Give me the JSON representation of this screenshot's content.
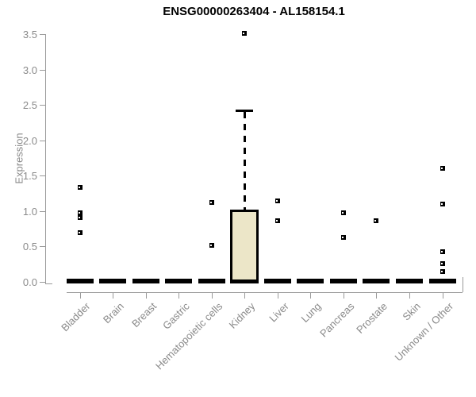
{
  "title": "ENSG00000263404 - AL158154.1",
  "colors": {
    "box_fill": "#ece6c8",
    "box_border": "#000000",
    "axis_line": "#9a9a9a",
    "tick_label_color": "#8a8a8a",
    "title_color": "#000000"
  },
  "chart_data": {
    "type": "boxplot",
    "title": "ENSG00000263404 - AL158154.1",
    "xlabel": "",
    "ylabel": "Expression",
    "ylim": [
      0,
      3.5
    ],
    "ytick_step": 0.5,
    "ytick_labels": [
      "0.0",
      "0.5",
      "1.0",
      "1.5",
      "2.0",
      "2.5",
      "3.0",
      "3.5"
    ],
    "grid": false,
    "legend": "none",
    "categories": [
      "Bladder",
      "Brain",
      "Breast",
      "Gastric",
      "Hematopoietic cells",
      "Kidney",
      "Liver",
      "Lung",
      "Pancreas",
      "Prostate",
      "Skin",
      "Unknown / Other"
    ],
    "series": [
      {
        "category": "Bladder",
        "q1": 0,
        "median": 0,
        "q3": 0,
        "whisker_low": 0,
        "whisker_high": 0,
        "outliers": [
          1.34,
          0.98,
          0.91,
          0.7
        ]
      },
      {
        "category": "Brain",
        "q1": 0,
        "median": 0,
        "q3": 0,
        "whisker_low": 0,
        "whisker_high": 0,
        "outliers": []
      },
      {
        "category": "Breast",
        "q1": 0,
        "median": 0,
        "q3": 0,
        "whisker_low": 0,
        "whisker_high": 0,
        "outliers": []
      },
      {
        "category": "Gastric",
        "q1": 0,
        "median": 0,
        "q3": 0,
        "whisker_low": 0,
        "whisker_high": 0,
        "outliers": []
      },
      {
        "category": "Hematopoietic cells",
        "q1": 0,
        "median": 0,
        "q3": 0,
        "whisker_low": 0,
        "whisker_high": 0,
        "outliers": [
          1.12,
          0.52
        ]
      },
      {
        "category": "Kidney",
        "q1": 0.02,
        "median": 0.02,
        "q3": 1.02,
        "whisker_low": 0.02,
        "whisker_high": 2.43,
        "outliers": [
          3.51
        ]
      },
      {
        "category": "Liver",
        "q1": 0,
        "median": 0,
        "q3": 0,
        "whisker_low": 0,
        "whisker_high": 0,
        "outliers": [
          1.15,
          0.87
        ]
      },
      {
        "category": "Lung",
        "q1": 0,
        "median": 0,
        "q3": 0,
        "whisker_low": 0,
        "whisker_high": 0,
        "outliers": []
      },
      {
        "category": "Pancreas",
        "q1": 0,
        "median": 0,
        "q3": 0,
        "whisker_low": 0,
        "whisker_high": 0,
        "outliers": [
          0.98,
          0.63
        ]
      },
      {
        "category": "Prostate",
        "q1": 0,
        "median": 0,
        "q3": 0,
        "whisker_low": 0,
        "whisker_high": 0,
        "outliers": [
          0.87
        ]
      },
      {
        "category": "Skin",
        "q1": 0,
        "median": 0,
        "q3": 0,
        "whisker_low": 0,
        "whisker_high": 0,
        "outliers": []
      },
      {
        "category": "Unknown / Other",
        "q1": 0,
        "median": 0,
        "q3": 0,
        "whisker_low": 0,
        "whisker_high": 0,
        "outliers": [
          1.61,
          1.1,
          0.43,
          0.26,
          0.15
        ]
      }
    ]
  }
}
